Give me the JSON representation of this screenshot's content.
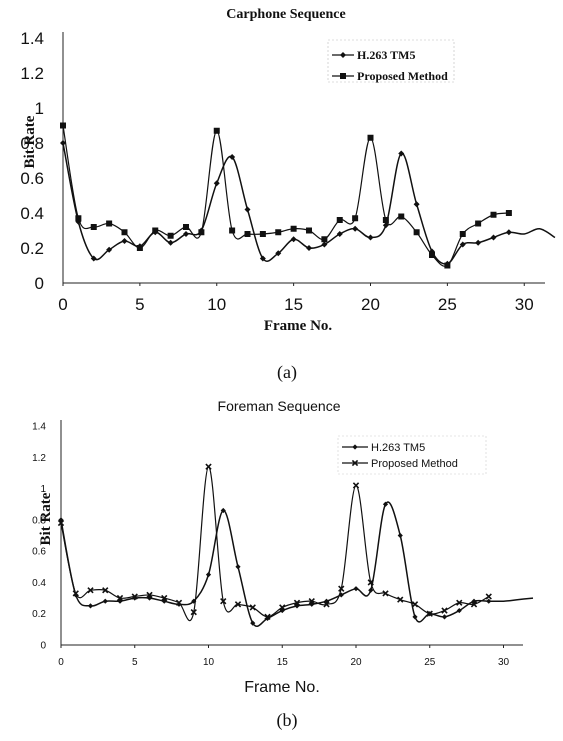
{
  "chart_data": [
    {
      "type": "line",
      "title": "Carphone Sequence",
      "xlabel": "Frame No.",
      "ylabel": "Bit Rate",
      "caption": "(a)",
      "xlim": [
        0,
        32
      ],
      "ylim": [
        0,
        1.4
      ],
      "xticks": [
        "0",
        "5",
        "10",
        "15",
        "20",
        "25",
        "30"
      ],
      "yticks": [
        "0",
        "0.2",
        "0.4",
        "0.6",
        "0.8",
        "1",
        "1.2",
        "1.4"
      ],
      "grid": false,
      "legend_position": "top-right",
      "series": [
        {
          "name": "H.263 TM5",
          "marker": "diamond",
          "color": "#111111",
          "x": [
            0,
            1,
            2,
            3,
            4,
            5,
            6,
            7,
            8,
            9,
            10,
            11,
            12,
            13,
            14,
            15,
            16,
            17,
            18,
            19,
            20,
            21,
            22,
            23,
            24,
            25,
            26,
            27,
            28,
            29,
            30,
            31,
            32
          ],
          "y": [
            0.8,
            0.35,
            0.14,
            0.19,
            0.24,
            0.21,
            0.29,
            0.23,
            0.28,
            0.3,
            0.57,
            0.72,
            0.42,
            0.14,
            0.17,
            0.25,
            0.2,
            0.22,
            0.28,
            0.31,
            0.26,
            0.33,
            0.74,
            0.45,
            0.18,
            0.11,
            0.22,
            0.23,
            0.26,
            0.29,
            0.28,
            0.31,
            0.26
          ]
        },
        {
          "name": "Proposed Method",
          "marker": "square",
          "color": "#111111",
          "x": [
            0,
            1,
            2,
            3,
            4,
            5,
            6,
            7,
            8,
            9,
            10,
            11,
            12,
            13,
            14,
            15,
            16,
            17,
            18,
            19,
            20,
            21,
            22,
            23,
            24,
            25,
            26,
            27,
            28,
            29
          ],
          "y": [
            0.9,
            0.37,
            0.32,
            0.34,
            0.29,
            0.2,
            0.3,
            0.27,
            0.32,
            0.29,
            0.87,
            0.3,
            0.28,
            0.28,
            0.29,
            0.31,
            0.3,
            0.25,
            0.36,
            0.37,
            0.83,
            0.36,
            0.38,
            0.29,
            0.16,
            0.1,
            0.28,
            0.34,
            0.39,
            0.4
          ]
        }
      ]
    },
    {
      "type": "line",
      "title": "Foreman Sequence",
      "xlabel": "Frame No.",
      "ylabel": "Bit Rate",
      "caption": "(b)",
      "xlim": [
        0,
        32
      ],
      "ylim": [
        0,
        1.4
      ],
      "xticks": [
        "0",
        "5",
        "10",
        "15",
        "20",
        "25",
        "30"
      ],
      "yticks": [
        "0",
        "0.2",
        "0.4",
        "0.6",
        "0.8",
        "1",
        "1.2",
        "1.4"
      ],
      "grid": false,
      "legend_position": "top-right",
      "series": [
        {
          "name": "H.263 TM5",
          "marker": "diamond",
          "color": "#111111",
          "x": [
            0,
            1,
            2,
            3,
            4,
            5,
            6,
            7,
            8,
            9,
            10,
            11,
            12,
            13,
            14,
            15,
            16,
            17,
            18,
            19,
            20,
            21,
            22,
            23,
            24,
            25,
            26,
            27,
            28,
            29,
            30,
            31,
            32
          ],
          "y": [
            0.8,
            0.32,
            0.25,
            0.28,
            0.28,
            0.3,
            0.3,
            0.28,
            0.26,
            0.28,
            0.45,
            0.86,
            0.5,
            0.14,
            0.17,
            0.22,
            0.25,
            0.26,
            0.28,
            0.32,
            0.36,
            0.35,
            0.9,
            0.7,
            0.18,
            0.2,
            0.18,
            0.22,
            0.28,
            0.28,
            0.28,
            0.29,
            0.3
          ]
        },
        {
          "name": "Proposed Method",
          "marker": "x",
          "color": "#111111",
          "x": [
            0,
            1,
            2,
            3,
            4,
            5,
            6,
            7,
            8,
            9,
            10,
            11,
            12,
            13,
            14,
            15,
            16,
            17,
            18,
            19,
            20,
            21,
            22,
            23,
            24,
            25,
            26,
            27,
            28,
            29
          ],
          "y": [
            0.78,
            0.33,
            0.35,
            0.35,
            0.3,
            0.31,
            0.32,
            0.3,
            0.27,
            0.21,
            1.14,
            0.28,
            0.26,
            0.24,
            0.18,
            0.24,
            0.27,
            0.28,
            0.26,
            0.36,
            1.02,
            0.4,
            0.33,
            0.29,
            0.26,
            0.2,
            0.22,
            0.27,
            0.26,
            0.31
          ]
        }
      ]
    }
  ]
}
